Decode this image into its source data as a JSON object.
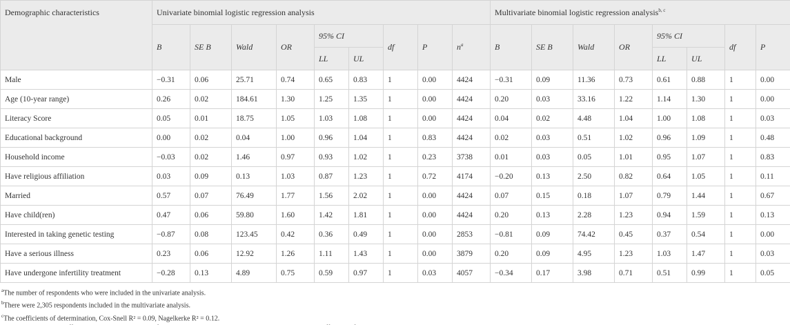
{
  "table": {
    "first_header": "Demographic characteristics",
    "groups": [
      {
        "title": "Univariate binomial logistic regression analysis"
      },
      {
        "title": "Multivariate binomial logistic regression analysis",
        "sup": "b, c"
      }
    ],
    "uni_columns": [
      "B",
      "SE B",
      "Wald",
      "OR",
      "95% CI",
      "df",
      "P"
    ],
    "uni_n": {
      "text": "n",
      "sup": "a"
    },
    "multi_columns": [
      "B",
      "SE B",
      "Wald",
      "OR",
      "95% CI",
      "df",
      "P"
    ],
    "ci_sub": [
      "LL",
      "UL"
    ],
    "rows": [
      [
        "Male",
        "−0.31",
        "0.06",
        "25.71",
        "0.74",
        "0.65",
        "0.83",
        "1",
        "0.00",
        "4424",
        "−0.31",
        "0.09",
        "11.36",
        "0.73",
        "0.61",
        "0.88",
        "1",
        "0.00"
      ],
      [
        "Age (10-year range)",
        "0.26",
        "0.02",
        "184.61",
        "1.30",
        "1.25",
        "1.35",
        "1",
        "0.00",
        "4424",
        "0.20",
        "0.03",
        "33.16",
        "1.22",
        "1.14",
        "1.30",
        "1",
        "0.00"
      ],
      [
        "Literacy Score",
        "0.05",
        "0.01",
        "18.75",
        "1.05",
        "1.03",
        "1.08",
        "1",
        "0.00",
        "4424",
        "0.04",
        "0.02",
        "4.48",
        "1.04",
        "1.00",
        "1.08",
        "1",
        "0.03"
      ],
      [
        "Educational background",
        "0.00",
        "0.02",
        "0.04",
        "1.00",
        "0.96",
        "1.04",
        "1",
        "0.83",
        "4424",
        "0.02",
        "0.03",
        "0.51",
        "1.02",
        "0.96",
        "1.09",
        "1",
        "0.48"
      ],
      [
        "Household income",
        "−0.03",
        "0.02",
        "1.46",
        "0.97",
        "0.93",
        "1.02",
        "1",
        "0.23",
        "3738",
        "0.01",
        "0.03",
        "0.05",
        "1.01",
        "0.95",
        "1.07",
        "1",
        "0.83"
      ],
      [
        "Have religious affiliation",
        "0.03",
        "0.09",
        "0.13",
        "1.03",
        "0.87",
        "1.23",
        "1",
        "0.72",
        "4174",
        "−0.20",
        "0.13",
        "2.50",
        "0.82",
        "0.64",
        "1.05",
        "1",
        "0.11"
      ],
      [
        "Married",
        "0.57",
        "0.07",
        "76.49",
        "1.77",
        "1.56",
        "2.02",
        "1",
        "0.00",
        "4424",
        "0.07",
        "0.15",
        "0.18",
        "1.07",
        "0.79",
        "1.44",
        "1",
        "0.67"
      ],
      [
        "Have child(ren)",
        "0.47",
        "0.06",
        "59.80",
        "1.60",
        "1.42",
        "1.81",
        "1",
        "0.00",
        "4424",
        "0.20",
        "0.13",
        "2.28",
        "1.23",
        "0.94",
        "1.59",
        "1",
        "0.13"
      ],
      [
        "Interested in taking genetic testing",
        "−0.87",
        "0.08",
        "123.45",
        "0.42",
        "0.36",
        "0.49",
        "1",
        "0.00",
        "2853",
        "−0.81",
        "0.09",
        "74.42",
        "0.45",
        "0.37",
        "0.54",
        "1",
        "0.00"
      ],
      [
        "Have a serious illness",
        "0.23",
        "0.06",
        "12.92",
        "1.26",
        "1.11",
        "1.43",
        "1",
        "0.00",
        "3879",
        "0.20",
        "0.09",
        "4.95",
        "1.23",
        "1.03",
        "1.47",
        "1",
        "0.03"
      ],
      [
        "Have undergone infertility treatment",
        "−0.28",
        "0.13",
        "4.89",
        "0.75",
        "0.59",
        "0.97",
        "1",
        "0.03",
        "4057",
        "−0.34",
        "0.17",
        "3.98",
        "0.71",
        "0.51",
        "0.99",
        "1",
        "0.05"
      ]
    ],
    "footnotes": [
      {
        "sup": "a",
        "text": "The number of respondents who were included in the univariate analysis."
      },
      {
        "sup": "b",
        "text": "There were 2,305 respondents included in the multivariate analysis."
      },
      {
        "sup": "c",
        "text": "The coefficients of determination, Cox-Snell R² = 0.09, Nagelkerke R² = 0.12."
      },
      {
        "text": "B, partial regression coefficient; OR, odds ratio; CI, confidence interval; LL, lower limit; UL, upper limit; R², the coefficients of determination."
      }
    ]
  }
}
